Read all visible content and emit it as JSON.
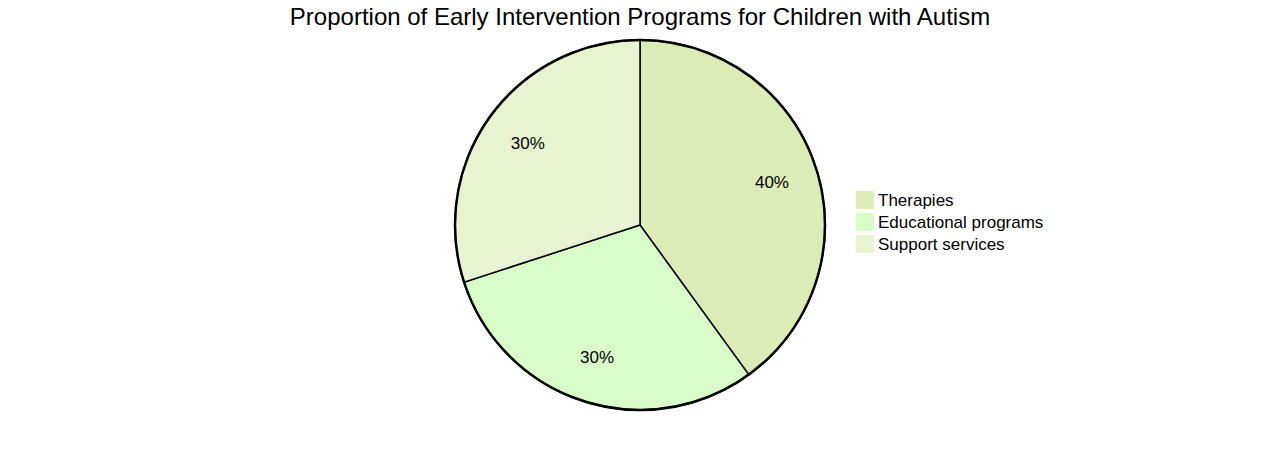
{
  "chart_data": {
    "type": "pie",
    "title": "Proportion of Early Intervention Programs for Children with Autism",
    "categories": [
      "Therapies",
      "Educational programs",
      "Support services"
    ],
    "values": [
      40,
      30,
      30
    ],
    "value_labels": [
      "40%",
      "30%",
      "30%"
    ],
    "colors": [
      "#dcecb6",
      "#d9fdc8",
      "#e8f3d2"
    ],
    "data_labels": true,
    "legend": "right"
  }
}
